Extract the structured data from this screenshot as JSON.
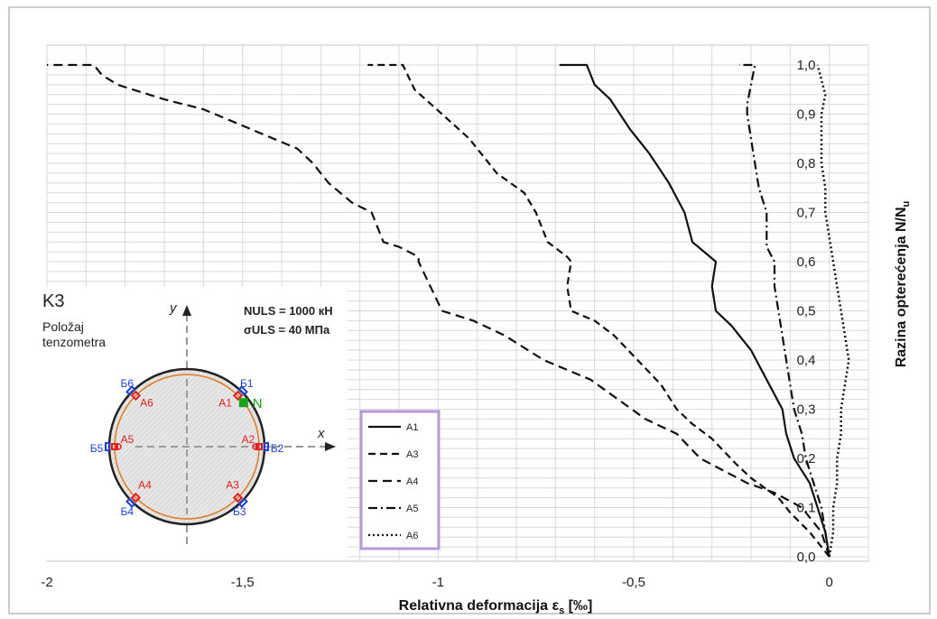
{
  "chart_data": {
    "type": "line",
    "xlabel": "Relativna deformacija ε",
    "xlabel_sub": "s",
    "xlabel_unit": " [‰]",
    "ylabel": "Razina opterećenja  N/N",
    "ylabel_sub": "u",
    "xlim": [
      -2,
      0.1
    ],
    "ylim": [
      0,
      1.0
    ],
    "x_ticks": [
      -2,
      -1.5,
      -1,
      -0.5,
      0
    ],
    "x_tick_labels": [
      "-2",
      "-1,5",
      "-1",
      "-0,5",
      "0"
    ],
    "y_ticks": [
      0,
      0.1,
      0.2,
      0.3,
      0.4,
      0.5,
      0.6,
      0.7,
      0.8,
      0.9,
      1.0
    ],
    "y_tick_labels": [
      "0,0",
      "0,1",
      "0,2",
      "0,3",
      "0,4",
      "0,5",
      "0,6",
      "0,7",
      "0,8",
      "0,9",
      "1,0"
    ],
    "grid": true,
    "legend_position": "inside-bottom-center",
    "series": [
      {
        "name": "A1",
        "style": "solid",
        "points": [
          [
            0,
            0
          ],
          [
            -0.01,
            0.05
          ],
          [
            -0.03,
            0.1
          ],
          [
            -0.05,
            0.15
          ],
          [
            -0.09,
            0.2
          ],
          [
            -0.11,
            0.25
          ],
          [
            -0.12,
            0.3
          ],
          [
            -0.16,
            0.36
          ],
          [
            -0.2,
            0.42
          ],
          [
            -0.25,
            0.47
          ],
          [
            -0.29,
            0.5
          ],
          [
            -0.3,
            0.55
          ],
          [
            -0.29,
            0.6
          ],
          [
            -0.35,
            0.64
          ],
          [
            -0.37,
            0.7
          ],
          [
            -0.41,
            0.76
          ],
          [
            -0.46,
            0.82
          ],
          [
            -0.51,
            0.87
          ],
          [
            -0.56,
            0.93
          ],
          [
            -0.6,
            0.96
          ],
          [
            -0.62,
            1.0
          ],
          [
            -0.69,
            1.0
          ]
        ]
      },
      {
        "name": "A3",
        "style": "dash",
        "points": [
          [
            0,
            0
          ],
          [
            -0.05,
            0.05
          ],
          [
            -0.1,
            0.09
          ],
          [
            -0.13,
            0.12
          ],
          [
            -0.2,
            0.16
          ],
          [
            -0.24,
            0.19
          ],
          [
            -0.3,
            0.24
          ],
          [
            -0.35,
            0.27
          ],
          [
            -0.39,
            0.3
          ],
          [
            -0.43,
            0.35
          ],
          [
            -0.49,
            0.4
          ],
          [
            -0.55,
            0.45
          ],
          [
            -0.6,
            0.48
          ],
          [
            -0.66,
            0.5
          ],
          [
            -0.67,
            0.55
          ],
          [
            -0.66,
            0.6
          ],
          [
            -0.67,
            0.61
          ],
          [
            -0.72,
            0.64
          ],
          [
            -0.75,
            0.7
          ],
          [
            -0.78,
            0.74
          ],
          [
            -0.85,
            0.78
          ],
          [
            -0.92,
            0.85
          ],
          [
            -0.99,
            0.9
          ],
          [
            -1.06,
            0.95
          ],
          [
            -1.09,
            1.0
          ],
          [
            -1.18,
            1.0
          ]
        ]
      },
      {
        "name": "A4",
        "style": "dash-long",
        "points": [
          [
            0,
            0
          ],
          [
            -0.02,
            0.05
          ],
          [
            -0.07,
            0.1
          ],
          [
            -0.14,
            0.13
          ],
          [
            -0.21,
            0.15
          ],
          [
            -0.33,
            0.2
          ],
          [
            -0.39,
            0.25
          ],
          [
            -0.47,
            0.28
          ],
          [
            -0.54,
            0.32
          ],
          [
            -0.61,
            0.36
          ],
          [
            -0.73,
            0.4
          ],
          [
            -0.83,
            0.45
          ],
          [
            -0.91,
            0.48
          ],
          [
            -0.99,
            0.5
          ],
          [
            -1.02,
            0.55
          ],
          [
            -1.05,
            0.6
          ],
          [
            -1.05,
            0.61
          ],
          [
            -1.1,
            0.63
          ],
          [
            -1.14,
            0.64
          ],
          [
            -1.17,
            0.7
          ],
          [
            -1.22,
            0.72
          ],
          [
            -1.28,
            0.76
          ],
          [
            -1.32,
            0.8
          ],
          [
            -1.36,
            0.83
          ],
          [
            -1.42,
            0.85
          ],
          [
            -1.51,
            0.88
          ],
          [
            -1.6,
            0.91
          ],
          [
            -1.7,
            0.93
          ],
          [
            -1.78,
            0.95
          ],
          [
            -1.82,
            0.96
          ],
          [
            -1.86,
            0.98
          ],
          [
            -1.88,
            1.0
          ],
          [
            -2.0,
            1.0
          ]
        ]
      },
      {
        "name": "A5",
        "style": "dashdot",
        "points": [
          [
            0,
            0
          ],
          [
            -0.01,
            0.05
          ],
          [
            -0.02,
            0.1
          ],
          [
            -0.04,
            0.15
          ],
          [
            -0.06,
            0.2
          ],
          [
            -0.07,
            0.25
          ],
          [
            -0.09,
            0.3
          ],
          [
            -0.1,
            0.35
          ],
          [
            -0.11,
            0.4
          ],
          [
            -0.12,
            0.45
          ],
          [
            -0.13,
            0.5
          ],
          [
            -0.14,
            0.55
          ],
          [
            -0.14,
            0.6
          ],
          [
            -0.16,
            0.63
          ],
          [
            -0.16,
            0.7
          ],
          [
            -0.18,
            0.75
          ],
          [
            -0.19,
            0.8
          ],
          [
            -0.2,
            0.85
          ],
          [
            -0.21,
            0.9
          ],
          [
            -0.21,
            0.92
          ],
          [
            -0.2,
            0.96
          ],
          [
            -0.19,
            1.0
          ],
          [
            -0.23,
            1.0
          ]
        ]
      },
      {
        "name": "A6",
        "style": "dot",
        "points": [
          [
            0,
            0
          ],
          [
            0.01,
            0.05
          ],
          [
            0.01,
            0.1
          ],
          [
            0.02,
            0.15
          ],
          [
            0.02,
            0.2
          ],
          [
            0.03,
            0.25
          ],
          [
            0.03,
            0.3
          ],
          [
            0.04,
            0.35
          ],
          [
            0.05,
            0.4
          ],
          [
            0.04,
            0.45
          ],
          [
            0.03,
            0.5
          ],
          [
            0.02,
            0.55
          ],
          [
            0.01,
            0.6
          ],
          [
            0.0,
            0.65
          ],
          [
            -0.01,
            0.7
          ],
          [
            -0.01,
            0.75
          ],
          [
            -0.02,
            0.8
          ],
          [
            -0.02,
            0.85
          ],
          [
            -0.02,
            0.9
          ],
          [
            -0.01,
            0.94
          ],
          [
            -0.02,
            0.97
          ],
          [
            -0.03,
            1.0
          ]
        ]
      }
    ],
    "inset": {
      "title": "K3",
      "subtitle_line1": "Položaj",
      "subtitle_line2": "tenzometra",
      "n_uls": "NULS = 1000 кН",
      "sigma_uls": "σULS = 40 МПа",
      "axis_y": "y",
      "axis_x": "x",
      "load_label": "N",
      "inner_gauges": [
        "A1",
        "A2",
        "A3",
        "A4",
        "A5",
        "A6"
      ],
      "outer_gauges": [
        "Б1",
        "Б2",
        "Б3",
        "Б4",
        "Б5",
        "Б6"
      ],
      "inner_color": "#e02020",
      "outer_color": "#1d3fd6",
      "load_color": "#1aa31a",
      "ring_color": "#e07a20"
    }
  }
}
